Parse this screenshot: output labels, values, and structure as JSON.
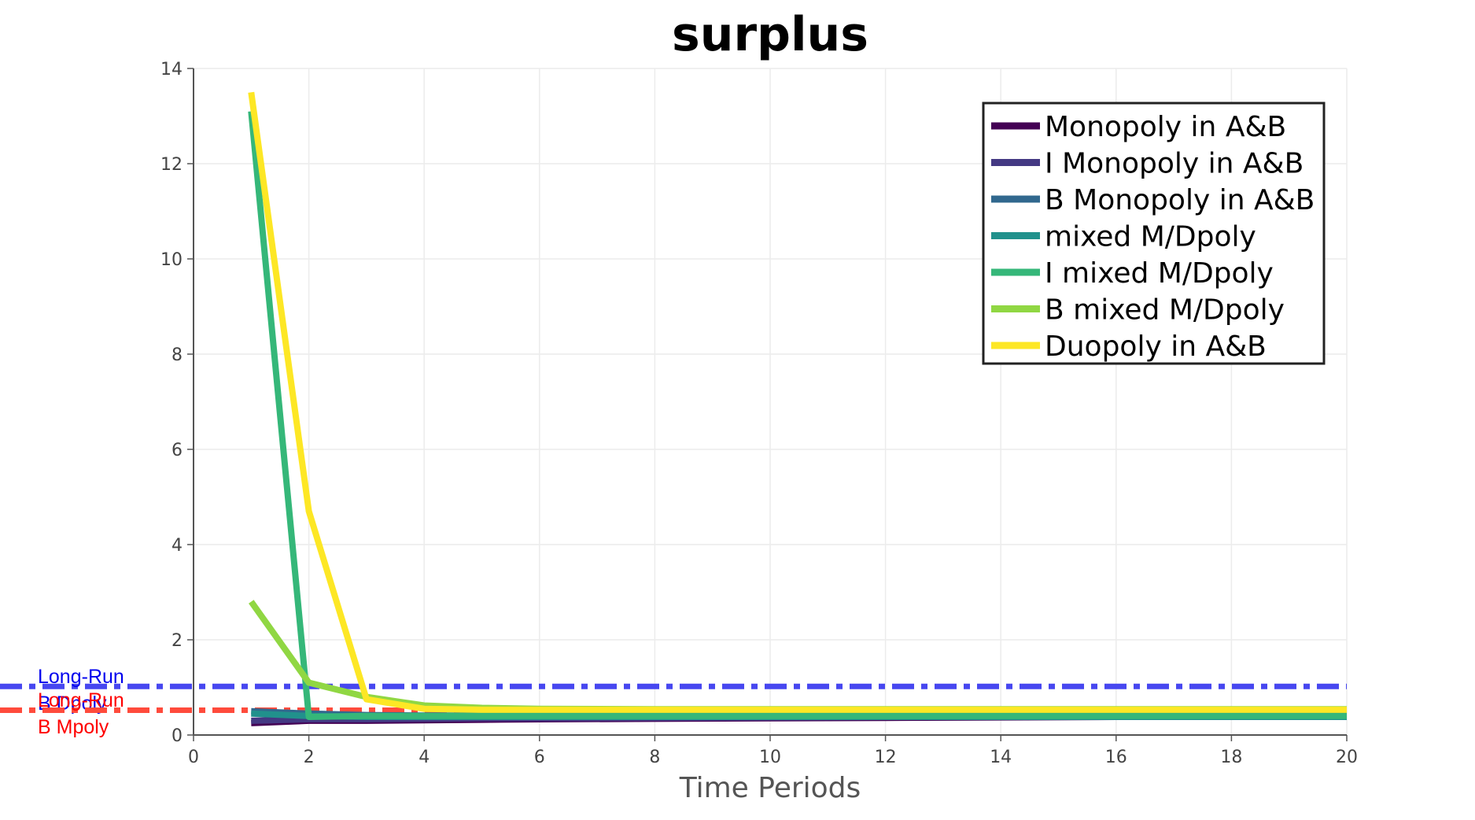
{
  "chart_data": {
    "type": "line",
    "title": "surplus",
    "xlabel": "Time Periods",
    "ylabel": "",
    "xlim": [
      0,
      20
    ],
    "ylim": [
      0,
      14
    ],
    "xticks": [
      0,
      2,
      4,
      6,
      8,
      10,
      12,
      14,
      16,
      18,
      20
    ],
    "yticks": [
      0,
      2,
      4,
      6,
      8,
      10,
      12,
      14
    ],
    "grid": true,
    "legend_position": "top-right",
    "series": [
      {
        "name": "Monopoly in A&B",
        "color": "#440154",
        "x": [
          1,
          2,
          3,
          4,
          5,
          6,
          8,
          10,
          12,
          14,
          16,
          18,
          20
        ],
        "y": [
          0.25,
          0.3,
          0.3,
          0.31,
          0.32,
          0.33,
          0.34,
          0.35,
          0.36,
          0.37,
          0.38,
          0.39,
          0.4
        ]
      },
      {
        "name": "I Monopoly in A&B",
        "color": "#443983",
        "x": [
          1,
          2,
          3,
          4,
          5,
          6,
          8,
          10,
          12,
          14,
          16,
          18,
          20
        ],
        "y": [
          0.3,
          0.33,
          0.33,
          0.34,
          0.35,
          0.35,
          0.36,
          0.37,
          0.38,
          0.39,
          0.4,
          0.41,
          0.42
        ]
      },
      {
        "name": "B Monopoly in A&B",
        "color": "#31688e",
        "x": [
          1,
          2,
          3,
          4,
          5,
          6,
          8,
          10,
          12,
          14,
          16,
          18,
          20
        ],
        "y": [
          0.5,
          0.45,
          0.42,
          0.41,
          0.41,
          0.41,
          0.41,
          0.41,
          0.41,
          0.41,
          0.41,
          0.41,
          0.41
        ]
      },
      {
        "name": "mixed M/Dpoly",
        "color": "#21918c",
        "x": [
          1,
          2,
          3,
          4,
          5,
          6,
          8,
          10,
          12,
          14,
          16,
          18,
          20
        ],
        "y": [
          0.45,
          0.4,
          0.38,
          0.38,
          0.38,
          0.38,
          0.38,
          0.38,
          0.38,
          0.38,
          0.38,
          0.38,
          0.38
        ]
      },
      {
        "name": "I mixed M/Dpoly",
        "color": "#35b779",
        "x": [
          1,
          2,
          3,
          4,
          5,
          6,
          8,
          10,
          12,
          14,
          16,
          18,
          20
        ],
        "y": [
          13.1,
          0.38,
          0.4,
          0.4,
          0.4,
          0.4,
          0.4,
          0.4,
          0.4,
          0.4,
          0.4,
          0.4,
          0.4
        ]
      },
      {
        "name": "B mixed M/Dpoly",
        "color": "#90d743",
        "x": [
          1,
          2,
          3,
          4,
          5,
          6,
          8,
          10,
          12,
          14,
          16,
          18,
          20
        ],
        "y": [
          2.8,
          1.1,
          0.8,
          0.62,
          0.57,
          0.55,
          0.54,
          0.54,
          0.54,
          0.54,
          0.54,
          0.54,
          0.54
        ]
      },
      {
        "name": "Duopoly in A&B",
        "color": "#fde725",
        "x": [
          1,
          2,
          3,
          4,
          5,
          6,
          8,
          10,
          12,
          14,
          16,
          18,
          20
        ],
        "y": [
          13.5,
          4.7,
          0.75,
          0.55,
          0.53,
          0.53,
          0.53,
          0.53,
          0.53,
          0.53,
          0.53,
          0.53,
          0.53
        ]
      }
    ],
    "reference_lines": [
      {
        "label_line1": "Long-Run",
        "label_line2": "B Dpoly",
        "y": 1.02,
        "color": "#4747f0",
        "label_color": "#0000ee",
        "style": "dash-dot"
      },
      {
        "label_line1": "Long-Run",
        "label_line2": "B Mpoly",
        "y": 0.52,
        "color": "#ff4b3c",
        "label_color": "#ff0000",
        "style": "dash-dot"
      }
    ]
  }
}
